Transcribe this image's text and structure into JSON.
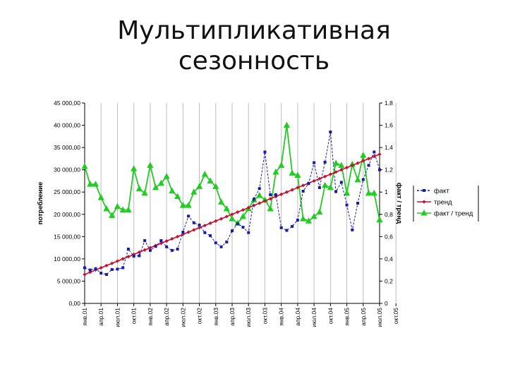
{
  "title_lines": [
    "Мультипликативная",
    "сезонность"
  ],
  "chart_data": {
    "type": "line",
    "title": "Мультипликативная сезонность",
    "ylabel": "потребление",
    "y2label": "факт / тренд",
    "ylim": [
      0,
      45000
    ],
    "y2lim": [
      0,
      1.8
    ],
    "y_ticks": [
      "0,00",
      "5 000,00",
      "10 000,00",
      "15 000,00",
      "20 000,00",
      "25 000,00",
      "30 000,00",
      "35 000,00",
      "40 000,00",
      "45 000,00"
    ],
    "y2_ticks": [
      "0",
      "0,2",
      "0,4",
      "0,6",
      "0,8",
      "1",
      "1,2",
      "1,4",
      "1,6",
      "1,8"
    ],
    "x_ticks": [
      "янв.01",
      "апр.01",
      "июл.01",
      "окт.01",
      "янв.02",
      "апр.02",
      "июл.02",
      "окт.02",
      "янв.03",
      "апр.03",
      "июл.03",
      "окт.03",
      "янв.04",
      "апр.04",
      "июл.04",
      "окт.04",
      "янв.05",
      "апр.05",
      "июл.05",
      "окт.05"
    ],
    "x_ticks_every": 3,
    "legend_position": "right",
    "grid": "vertical",
    "series": [
      {
        "name": "факт",
        "axis": "left",
        "color": "#1a1aa8",
        "marker": "square",
        "dash": "3,2",
        "values": [
          8000,
          7500,
          7800,
          6800,
          6500,
          7600,
          7700,
          8000,
          12200,
          10600,
          10700,
          14100,
          11900,
          12800,
          14100,
          12700,
          11900,
          12200,
          16000,
          19600,
          18100,
          17600,
          15900,
          15200,
          13600,
          12700,
          13800,
          16300,
          17900,
          17100,
          15900,
          23400,
          25800,
          34000,
          24400,
          24400,
          17000,
          16400,
          17300,
          18700,
          25200,
          26900,
          31600,
          26000,
          31700,
          38500,
          25100,
          27200,
          22100,
          16500,
          22500,
          27800,
          31000,
          34000,
          30000
        ]
      },
      {
        "name": "тренд",
        "axis": "left",
        "color": "#c8102e",
        "marker": "diamond",
        "dash": "",
        "values": [
          6500,
          7000,
          7500,
          8000,
          8500,
          9000,
          9500,
          10000,
          10500,
          11000,
          11500,
          12000,
          12500,
          13000,
          13500,
          14000,
          14500,
          15000,
          15500,
          16000,
          16500,
          17000,
          17500,
          18000,
          18500,
          19000,
          19500,
          20000,
          20500,
          21000,
          21500,
          22000,
          22500,
          23000,
          23500,
          24000,
          24500,
          25000,
          25500,
          26000,
          26500,
          27000,
          27500,
          28000,
          28500,
          29000,
          29500,
          30000,
          30500,
          31000,
          31500,
          32000,
          32500,
          33000,
          33500
        ]
      },
      {
        "name": "факт / тренд",
        "axis": "right",
        "color": "#22cc22",
        "marker": "triangle",
        "dash": "",
        "values": [
          1.23,
          1.07,
          1.07,
          0.95,
          0.85,
          0.79,
          0.87,
          0.84,
          0.84,
          1.21,
          1.03,
          0.99,
          1.24,
          1.04,
          1.08,
          1.14,
          1.01,
          0.96,
          0.88,
          0.88,
          1.0,
          1.05,
          1.16,
          1.1,
          1.05,
          0.91,
          0.85,
          0.76,
          0.72,
          0.78,
          0.85,
          0.93,
          0.97,
          0.93,
          0.85,
          1.18,
          1.24,
          1.6,
          1.17,
          1.15,
          0.76,
          0.74,
          0.78,
          0.82,
          1.06,
          1.04,
          1.26,
          1.24,
          0.99,
          1.25,
          1.11,
          1.33,
          0.99,
          0.99,
          0.75
        ]
      }
    ]
  }
}
